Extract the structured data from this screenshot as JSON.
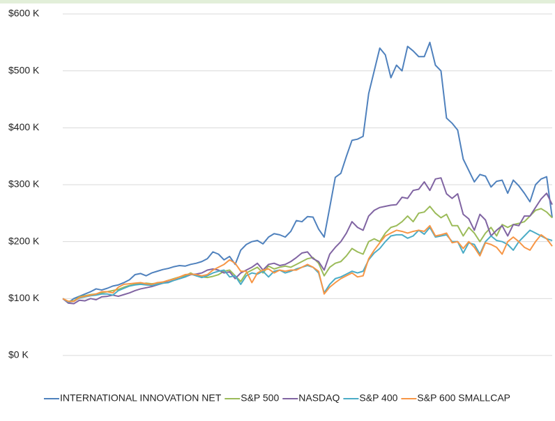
{
  "chart_data": {
    "type": "line",
    "ylim": [
      0,
      600
    ],
    "yticks": [
      {
        "value": 0,
        "label": "$0 K"
      },
      {
        "value": 100,
        "label": "$100 K"
      },
      {
        "value": 200,
        "label": "$200 K"
      },
      {
        "value": 300,
        "label": "$300 K"
      },
      {
        "value": 400,
        "label": "$400 K"
      },
      {
        "value": 500,
        "label": "$500 K"
      },
      {
        "value": 600,
        "label": "$600 K"
      }
    ],
    "grid": true,
    "legend": "bottom",
    "series": [
      {
        "name": "INTERNATIONAL INNOVATION NET",
        "color": "#4f81bd",
        "values": [
          100,
          93,
          100,
          104,
          108,
          112,
          117,
          115,
          118,
          122,
          124,
          128,
          133,
          142,
          144,
          140,
          145,
          148,
          151,
          153,
          156,
          158,
          157,
          160,
          162,
          165,
          170,
          182,
          178,
          168,
          174,
          160,
          185,
          195,
          200,
          202,
          196,
          208,
          214,
          212,
          208,
          218,
          237,
          235,
          244,
          243,
          222,
          208,
          260,
          313,
          320,
          350,
          378,
          380,
          385,
          460,
          500,
          540,
          528,
          488,
          510,
          500,
          543,
          535,
          525,
          525,
          550,
          510,
          500,
          417,
          408,
          396,
          345,
          325,
          305,
          318,
          315,
          296,
          306,
          308,
          285,
          308,
          298,
          285,
          270,
          300,
          310,
          314,
          242
        ]
      },
      {
        "name": "S&P 500",
        "color": "#9bbb59",
        "values": [
          100,
          95,
          96,
          103,
          105,
          107,
          108,
          110,
          112,
          114,
          116,
          120,
          123,
          125,
          126,
          127,
          126,
          127,
          129,
          132,
          135,
          138,
          140,
          145,
          140,
          138,
          137,
          139,
          142,
          148,
          150,
          140,
          130,
          145,
          150,
          155,
          145,
          157,
          152,
          155,
          157,
          155,
          160,
          165,
          170,
          172,
          162,
          140,
          155,
          162,
          165,
          175,
          188,
          182,
          178,
          200,
          205,
          200,
          215,
          225,
          228,
          235,
          245,
          235,
          250,
          252,
          262,
          250,
          242,
          248,
          228,
          228,
          210,
          225,
          215,
          200,
          215,
          225,
          210,
          230,
          225,
          230,
          232,
          235,
          245,
          255,
          258,
          252,
          242
        ]
      },
      {
        "name": "NASDAQ",
        "color": "#8064a2",
        "values": [
          100,
          92,
          91,
          97,
          96,
          100,
          98,
          103,
          104,
          106,
          104,
          107,
          110,
          114,
          117,
          119,
          121,
          124,
          127,
          129,
          132,
          135,
          138,
          142,
          143,
          145,
          150,
          152,
          150,
          145,
          147,
          135,
          145,
          150,
          155,
          162,
          150,
          160,
          162,
          158,
          160,
          165,
          172,
          180,
          182,
          170,
          165,
          150,
          178,
          190,
          200,
          215,
          235,
          225,
          220,
          245,
          255,
          260,
          262,
          264,
          265,
          278,
          276,
          290,
          292,
          305,
          290,
          310,
          312,
          284,
          276,
          284,
          248,
          240,
          220,
          248,
          238,
          210,
          220,
          228,
          210,
          230,
          228,
          245,
          245,
          260,
          275,
          285,
          265
        ]
      },
      {
        "name": "S&P 400",
        "color": "#4bacc6",
        "values": [
          100,
          94,
          95,
          101,
          103,
          105,
          106,
          108,
          108,
          106,
          114,
          118,
          122,
          124,
          125,
          124,
          123,
          125,
          127,
          128,
          132,
          135,
          138,
          143,
          140,
          137,
          140,
          145,
          148,
          150,
          138,
          140,
          125,
          140,
          145,
          143,
          148,
          138,
          148,
          150,
          145,
          148,
          152,
          155,
          158,
          155,
          145,
          110,
          125,
          135,
          138,
          143,
          148,
          145,
          148,
          168,
          180,
          188,
          200,
          210,
          212,
          212,
          206,
          210,
          220,
          213,
          225,
          208,
          210,
          212,
          200,
          200,
          180,
          198,
          195,
          178,
          200,
          210,
          202,
          200,
          195,
          185,
          200,
          210,
          220,
          215,
          210,
          205,
          202
        ]
      },
      {
        "name": "S&P 600 SMALLCAP",
        "color": "#f79646",
        "values": [
          100,
          95,
          95,
          102,
          104,
          106,
          108,
          112,
          112,
          110,
          120,
          125,
          126,
          127,
          128,
          126,
          125,
          128,
          129,
          132,
          134,
          138,
          142,
          143,
          142,
          140,
          142,
          150,
          155,
          160,
          168,
          162,
          148,
          148,
          128,
          145,
          150,
          152,
          145,
          150,
          148,
          150,
          150,
          155,
          160,
          155,
          148,
          108,
          120,
          128,
          135,
          140,
          145,
          138,
          140,
          170,
          185,
          198,
          210,
          215,
          220,
          218,
          215,
          218,
          220,
          218,
          228,
          210,
          212,
          215,
          198,
          200,
          188,
          200,
          190,
          175,
          198,
          195,
          190,
          178,
          200,
          208,
          200,
          190,
          185,
          200,
          212,
          205,
          192
        ]
      }
    ]
  }
}
